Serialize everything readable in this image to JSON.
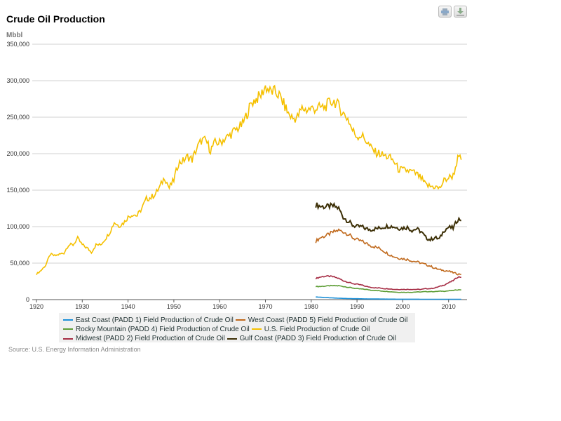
{
  "toolbar": {
    "print_icon": "print-icon",
    "download_icon": "download-icon"
  },
  "chart_data": {
    "type": "line",
    "title": "Crude Oil Production",
    "ylabel": "Mbbl",
    "source": "Source: U.S. Energy Information Administration",
    "xlim": [
      1919,
      2013
    ],
    "ylim": [
      0,
      350000
    ],
    "xticks": [
      1920,
      1930,
      1940,
      1950,
      1960,
      1970,
      1980,
      1990,
      2000,
      2010
    ],
    "yticks": [
      0,
      50000,
      100000,
      150000,
      200000,
      250000,
      300000,
      350000
    ],
    "ytick_labels": [
      "0",
      "50,000",
      "100,000",
      "150,000",
      "200,000",
      "250,000",
      "300,000",
      "350,000"
    ],
    "grid": "horizontal",
    "legend_placement": "bottom",
    "series": [
      {
        "name": "East Coast (PADD 1) Field Production of Crude Oil",
        "color": "#1a8fd8",
        "start": 1981,
        "values": [
          3700,
          3300,
          2900,
          2500,
          2200,
          1900,
          1700,
          1500,
          1300,
          1200,
          1100,
          1000,
          900,
          850,
          800,
          750,
          700,
          650,
          600,
          600,
          600,
          550,
          550,
          500,
          500,
          500,
          450,
          450,
          450,
          450,
          450,
          450
        ]
      },
      {
        "name": "West Coast (PADD 5) Field Production of Crude Oil",
        "color": "#c0691c",
        "start": 1981,
        "values": [
          80000,
          85000,
          87000,
          90000,
          93000,
          95000,
          93000,
          90000,
          85000,
          82000,
          80000,
          77000,
          74000,
          72000,
          70000,
          66000,
          62000,
          59000,
          57000,
          56000,
          55000,
          53000,
          52000,
          50000,
          48000,
          46000,
          43000,
          41000,
          40000,
          39000,
          37000,
          35000
        ]
      },
      {
        "name": "Rocky Mountain (PADD 4) Field Production of Crude Oil",
        "color": "#5d9d35",
        "start": 1981,
        "values": [
          18000,
          18000,
          18500,
          19000,
          19000,
          19000,
          18000,
          17000,
          16000,
          15000,
          14500,
          14000,
          13000,
          12500,
          12000,
          11500,
          11000,
          10500,
          10000,
          10000,
          10000,
          10000,
          10500,
          10500,
          11000,
          11000,
          11000,
          11500,
          11500,
          12000,
          12500,
          13500
        ]
      },
      {
        "name": "U.S. Field Production of Crude Oil",
        "color": "#f5c000",
        "start": 1920,
        "values": [
          35000,
          40000,
          47000,
          62000,
          60000,
          62000,
          64000,
          75000,
          75000,
          84000,
          75000,
          71000,
          65000,
          75000,
          75000,
          83000,
          92000,
          106000,
          101000,
          105000,
          113000,
          117000,
          115000,
          125000,
          138000,
          140000,
          145000,
          155000,
          168000,
          153000,
          164000,
          187000,
          190000,
          196000,
          192000,
          207000,
          218000,
          218000,
          205000,
          215000,
          215000,
          220000,
          224000,
          230000,
          235000,
          240000,
          255000,
          270000,
          275000,
          280000,
          292000,
          285000,
          285000,
          280000,
          268000,
          255000,
          248000,
          250000,
          262000,
          260000,
          262000,
          262000,
          263000,
          264000,
          270000,
          272000,
          265000,
          255000,
          248000,
          232000,
          224000,
          225000,
          218000,
          208000,
          202000,
          200000,
          197000,
          195000,
          190000,
          179000,
          177000,
          177000,
          175000,
          172000,
          166000,
          157000,
          155000,
          155000,
          152000,
          163000,
          167000,
          170000,
          193000
        ]
      },
      {
        "name": "Midwest (PADD 2) Field Production of Crude Oil",
        "color": "#a52b43",
        "start": 1981,
        "values": [
          29000,
          31000,
          32000,
          32000,
          31000,
          29000,
          26000,
          24000,
          22000,
          21000,
          20000,
          18000,
          17000,
          16000,
          16000,
          15000,
          15000,
          14000,
          14000,
          14000,
          14000,
          14000,
          14000,
          14000,
          15000,
          15000,
          16000,
          18000,
          20000,
          23000,
          26000,
          31000
        ]
      },
      {
        "name": "Gulf Coast (PADD 3) Field Production of Crude Oil",
        "color": "#3c2f06",
        "start": 1981,
        "values": [
          130000,
          128000,
          127000,
          128000,
          128000,
          125000,
          113000,
          108000,
          102000,
          100000,
          100000,
          97000,
          96000,
          97000,
          98000,
          100000,
          101000,
          100000,
          98000,
          98000,
          99000,
          95000,
          97000,
          93000,
          85000,
          82000,
          85000,
          83000,
          95000,
          99000,
          98000,
          110000
        ]
      }
    ]
  }
}
